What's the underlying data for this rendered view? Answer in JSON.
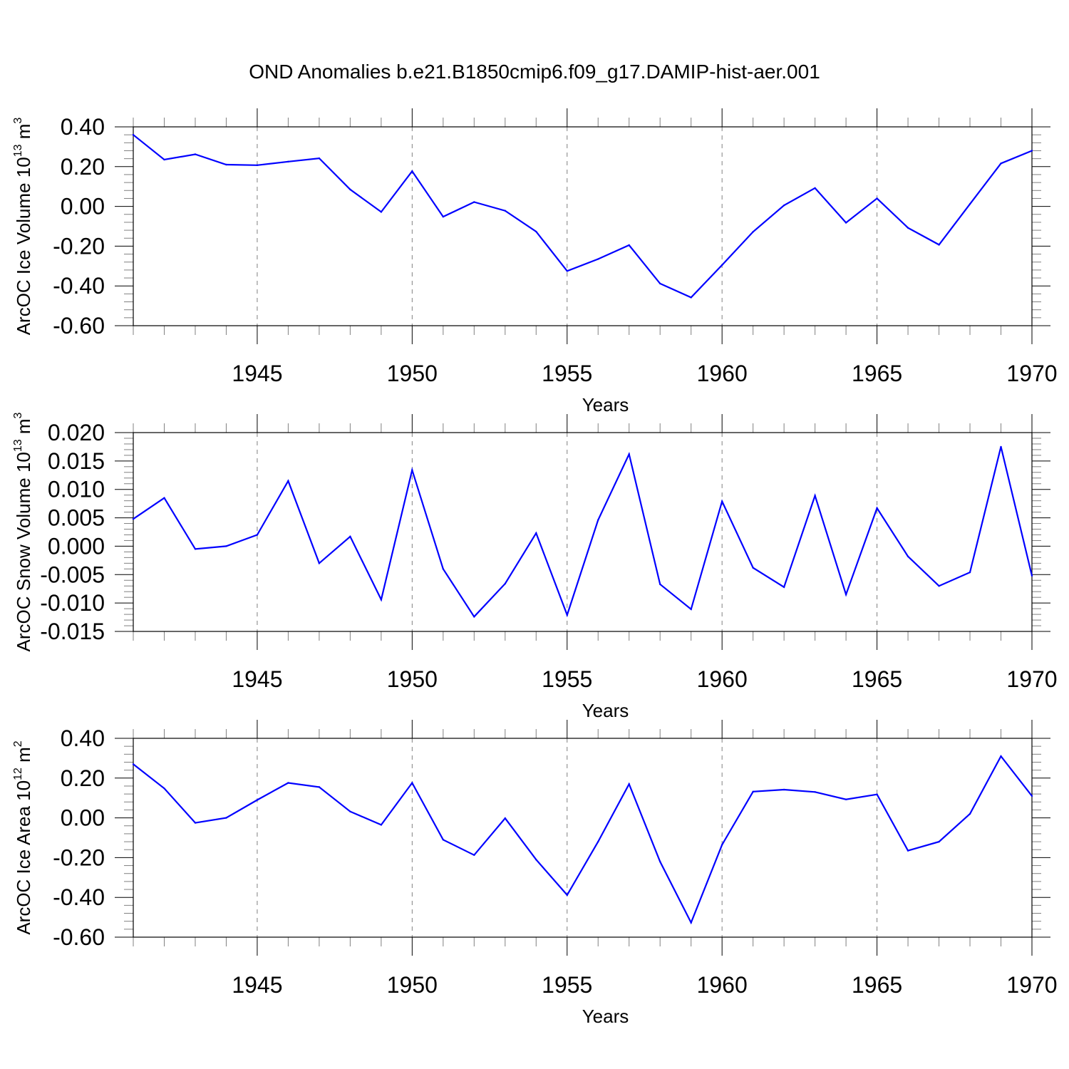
{
  "figure": {
    "title": "OND Anomalies b.e21.B1850cmip6.f09_g17.DAMIP-hist-aer.001"
  },
  "colors": {
    "line": "#0000ff",
    "axis": "#000000",
    "grid": "#808080",
    "background": "#ffffff"
  },
  "chart_data": [
    {
      "type": "line",
      "title": "OND Anomalies b.e21.B1850cmip6.f09_g17.DAMIP-hist-aer.001",
      "xlabel": "Years",
      "ylabel": {
        "main": "ArcOC Ice Volume 10",
        "exp": "13",
        "unit": " m",
        "unit_exp": "3"
      },
      "xlim": [
        1941,
        1970
      ],
      "ylim": [
        -0.6,
        0.4
      ],
      "xticks": [
        1945,
        1950,
        1955,
        1960,
        1965,
        1970
      ],
      "xtick_labels": [
        "1945",
        "1950",
        "1955",
        "1960",
        "1965",
        "1970"
      ],
      "yticks": [
        -0.6,
        -0.4,
        -0.2,
        0.0,
        0.2,
        0.4
      ],
      "ytick_labels": [
        "-0.60",
        "-0.40",
        "-0.20",
        "0.00",
        "0.20",
        "0.40"
      ],
      "grid": "vertical dashed at major x ticks",
      "x": [
        1941,
        1942,
        1943,
        1944,
        1945,
        1946,
        1947,
        1948,
        1949,
        1950,
        1951,
        1952,
        1953,
        1954,
        1955,
        1956,
        1957,
        1958,
        1959,
        1960,
        1961,
        1962,
        1963,
        1964,
        1965,
        1966,
        1967,
        1968,
        1969,
        1970
      ],
      "series": [
        {
          "values": [
            0.36,
            0.235,
            0.262,
            0.21,
            0.207,
            0.225,
            0.242,
            0.085,
            -0.028,
            0.177,
            -0.052,
            0.022,
            -0.022,
            -0.127,
            -0.325,
            -0.265,
            -0.195,
            -0.388,
            -0.458,
            -0.295,
            -0.128,
            0.005,
            0.092,
            -0.082,
            0.04,
            -0.108,
            -0.193,
            0.012,
            0.216,
            0.28
          ]
        }
      ]
    },
    {
      "type": "line",
      "xlabel": "Years",
      "ylabel": {
        "main": "ArcOC Snow Volume 10",
        "exp": "13",
        "unit": " m",
        "unit_exp": "3"
      },
      "xlim": [
        1941,
        1970
      ],
      "ylim": [
        -0.015,
        0.02
      ],
      "xticks": [
        1945,
        1950,
        1955,
        1960,
        1965,
        1970
      ],
      "xtick_labels": [
        "1945",
        "1950",
        "1955",
        "1960",
        "1965",
        "1970"
      ],
      "yticks": [
        -0.015,
        -0.01,
        -0.005,
        0.0,
        0.005,
        0.01,
        0.015,
        0.02
      ],
      "ytick_labels": [
        "-0.015",
        "-0.010",
        "-0.005",
        "0.000",
        "0.005",
        "0.010",
        "0.015",
        "0.020"
      ],
      "grid": "vertical dashed at major x ticks",
      "x": [
        1941,
        1942,
        1943,
        1944,
        1945,
        1946,
        1947,
        1948,
        1949,
        1950,
        1951,
        1952,
        1953,
        1954,
        1955,
        1956,
        1957,
        1958,
        1959,
        1960,
        1961,
        1962,
        1963,
        1964,
        1965,
        1966,
        1967,
        1968,
        1969,
        1970
      ],
      "series": [
        {
          "values": [
            0.0048,
            0.0085,
            -0.0005,
            0.0,
            0.002,
            0.0115,
            -0.003,
            0.0017,
            -0.0094,
            0.0134,
            -0.004,
            -0.0124,
            -0.0066,
            0.0023,
            -0.0121,
            0.0046,
            0.0162,
            -0.0067,
            -0.0111,
            0.0079,
            -0.0038,
            -0.0072,
            0.0089,
            -0.0085,
            0.0067,
            -0.0018,
            -0.007,
            -0.0046,
            0.0175,
            -0.0052
          ]
        }
      ]
    },
    {
      "type": "line",
      "xlabel": "Years",
      "ylabel": {
        "main": "ArcOC Ice Area 10",
        "exp": "12",
        "unit": " m",
        "unit_exp": "2"
      },
      "xlim": [
        1941,
        1970
      ],
      "ylim": [
        -0.6,
        0.4
      ],
      "xticks": [
        1945,
        1950,
        1955,
        1960,
        1965,
        1970
      ],
      "xtick_labels": [
        "1945",
        "1950",
        "1955",
        "1960",
        "1965",
        "1970"
      ],
      "yticks": [
        -0.6,
        -0.4,
        -0.2,
        0.0,
        0.2,
        0.4
      ],
      "ytick_labels": [
        "-0.60",
        "-0.40",
        "-0.20",
        "0.00",
        "0.20",
        "0.40"
      ],
      "grid": "vertical dashed at major x ticks",
      "x": [
        1941,
        1942,
        1943,
        1944,
        1945,
        1946,
        1947,
        1948,
        1949,
        1950,
        1951,
        1952,
        1953,
        1954,
        1955,
        1956,
        1957,
        1958,
        1959,
        1960,
        1961,
        1962,
        1963,
        1964,
        1965,
        1966,
        1967,
        1968,
        1969,
        1970
      ],
      "series": [
        {
          "values": [
            0.27,
            0.148,
            -0.025,
            0.0,
            0.09,
            0.176,
            0.155,
            0.032,
            -0.035,
            0.176,
            -0.11,
            -0.187,
            -0.002,
            -0.21,
            -0.388,
            -0.12,
            0.17,
            -0.22,
            -0.527,
            -0.135,
            0.132,
            0.142,
            0.13,
            0.093,
            0.118,
            -0.165,
            -0.12,
            0.02,
            0.31,
            0.11
          ]
        }
      ]
    }
  ]
}
